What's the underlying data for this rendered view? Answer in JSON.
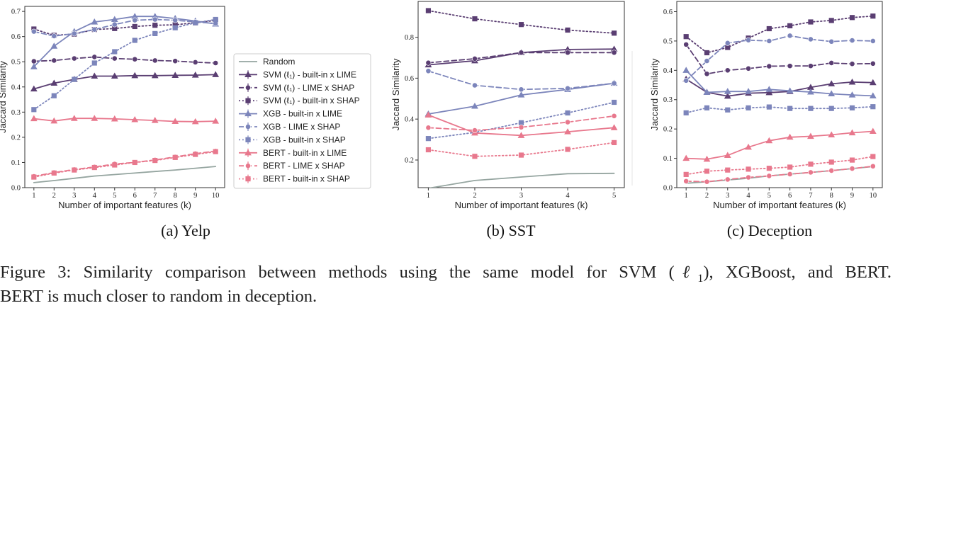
{
  "colors": {
    "svm": "#5a3e72",
    "xgb": "#7c85bb",
    "bert": "#e8788d",
    "random": "#95a5a0"
  },
  "legend": {
    "placement": "between panel a and panel b",
    "entries": [
      {
        "label": "Random",
        "color": "#95a5a0",
        "dash": "solid",
        "marker": "none"
      },
      {
        "label": "SVM (ℓ₁) - built-in x LIME",
        "color": "#5a3e72",
        "dash": "solid",
        "marker": "tri"
      },
      {
        "label": "SVM (ℓ₁) - LIME x SHAP",
        "color": "#5a3e72",
        "dash": "dashed",
        "marker": "circle"
      },
      {
        "label": "SVM (ℓ₁) - built-in x SHAP",
        "color": "#5a3e72",
        "dash": "dotted",
        "marker": "square"
      },
      {
        "label": "XGB - built-in x LIME",
        "color": "#7c85bb",
        "dash": "solid",
        "marker": "tri"
      },
      {
        "label": "XGB - LIME x SHAP",
        "color": "#7c85bb",
        "dash": "dashed",
        "marker": "circle"
      },
      {
        "label": "XGB - built-in x SHAP",
        "color": "#7c85bb",
        "dash": "dotted",
        "marker": "square"
      },
      {
        "label": "BERT - built-in x LIME",
        "color": "#e8788d",
        "dash": "solid",
        "marker": "tri"
      },
      {
        "label": "BERT - LIME x SHAP",
        "color": "#e8788d",
        "dash": "dashed",
        "marker": "circle"
      },
      {
        "label": "BERT - built-in x SHAP",
        "color": "#e8788d",
        "dash": "dotted",
        "marker": "square"
      }
    ]
  },
  "chart_data": [
    {
      "type": "line",
      "subcaption": "(a) Yelp",
      "xlabel": "Number of important features (k)",
      "ylabel": "Jaccard Similarity",
      "x": [
        1,
        2,
        3,
        4,
        5,
        6,
        7,
        8,
        9,
        10
      ],
      "xticks": [
        "1",
        "2",
        "3",
        "4",
        "5",
        "6",
        "7",
        "8",
        "9",
        "10"
      ],
      "xlim": [
        0.55,
        10.45
      ],
      "ylim": [
        0.0,
        0.72
      ],
      "yticks": [
        "0.0",
        "0.1",
        "0.2",
        "0.3",
        "0.4",
        "0.5",
        "0.6",
        "0.7"
      ],
      "grid": false,
      "series": [
        {
          "name": "Random",
          "values": [
            0.02,
            0.028,
            0.037,
            0.046,
            0.052,
            0.058,
            0.064,
            0.07,
            0.077,
            0.084
          ]
        },
        {
          "name": "SVM (ℓ₁) - built-in x LIME",
          "values": [
            0.392,
            0.415,
            0.43,
            0.443,
            0.443,
            0.445,
            0.445,
            0.446,
            0.447,
            0.449
          ]
        },
        {
          "name": "SVM (ℓ₁) - LIME x SHAP",
          "values": [
            0.502,
            0.505,
            0.513,
            0.519,
            0.513,
            0.51,
            0.505,
            0.503,
            0.498,
            0.495
          ]
        },
        {
          "name": "SVM (ℓ₁) - built-in x SHAP",
          "values": [
            0.63,
            0.605,
            0.61,
            0.628,
            0.632,
            0.64,
            0.645,
            0.647,
            0.655,
            0.664
          ]
        },
        {
          "name": "XGB - built-in x LIME",
          "values": [
            0.48,
            0.562,
            0.62,
            0.658,
            0.668,
            0.68,
            0.68,
            0.672,
            0.662,
            0.65
          ]
        },
        {
          "name": "XGB - LIME x SHAP",
          "values": [
            0.62,
            0.602,
            0.612,
            0.628,
            0.648,
            0.665,
            0.668,
            0.665,
            0.658,
            0.652
          ]
        },
        {
          "name": "XGB - built-in x SHAP",
          "values": [
            0.31,
            0.365,
            0.43,
            0.495,
            0.54,
            0.585,
            0.612,
            0.635,
            0.655,
            0.668
          ]
        },
        {
          "name": "BERT - built-in x LIME",
          "values": [
            0.274,
            0.265,
            0.275,
            0.275,
            0.273,
            0.27,
            0.267,
            0.263,
            0.262,
            0.264
          ]
        },
        {
          "name": "BERT - LIME x SHAP",
          "values": [
            0.045,
            0.06,
            0.072,
            0.082,
            0.094,
            0.1,
            0.11,
            0.122,
            0.135,
            0.145
          ]
        },
        {
          "name": "BERT - built-in x SHAP",
          "values": [
            0.042,
            0.058,
            0.07,
            0.08,
            0.09,
            0.1,
            0.108,
            0.12,
            0.132,
            0.143
          ]
        }
      ]
    },
    {
      "type": "line",
      "subcaption": "(b) SST",
      "xlabel": "Number of important features (k)",
      "ylabel": "Jaccard Similarity",
      "x": [
        1,
        2,
        3,
        4,
        5
      ],
      "xticks": [
        "1",
        "2",
        "3",
        "4",
        "5"
      ],
      "xlim": [
        0.78,
        5.22
      ],
      "ylim": [
        0.065,
        0.975
      ],
      "yticks": [
        "0.2",
        "0.4",
        "0.6",
        "0.8"
      ],
      "grid": false,
      "series": [
        {
          "name": "Random",
          "values": [
            0.062,
            0.1,
            0.117,
            0.133,
            0.135
          ]
        },
        {
          "name": "SVM (ℓ₁) - built-in x LIME",
          "values": [
            0.665,
            0.685,
            0.725,
            0.74,
            0.742
          ]
        },
        {
          "name": "SVM (ℓ₁) - LIME x SHAP",
          "values": [
            0.675,
            0.695,
            0.725,
            0.725,
            0.725
          ]
        },
        {
          "name": "SVM (ℓ₁) - built-in x SHAP",
          "values": [
            0.93,
            0.89,
            0.862,
            0.835,
            0.82
          ]
        },
        {
          "name": "XGB - built-in x LIME",
          "values": [
            0.425,
            0.463,
            0.518,
            0.545,
            0.575
          ]
        },
        {
          "name": "XGB - LIME x SHAP",
          "values": [
            0.635,
            0.565,
            0.545,
            0.55,
            0.575
          ]
        },
        {
          "name": "XGB - built-in x SHAP",
          "values": [
            0.305,
            0.335,
            0.382,
            0.43,
            0.482
          ]
        },
        {
          "name": "BERT - built-in x LIME",
          "values": [
            0.42,
            0.332,
            0.32,
            0.338,
            0.358
          ]
        },
        {
          "name": "BERT - LIME x SHAP",
          "values": [
            0.358,
            0.345,
            0.36,
            0.385,
            0.415
          ]
        },
        {
          "name": "BERT - built-in x SHAP",
          "values": [
            0.25,
            0.218,
            0.224,
            0.252,
            0.285
          ]
        }
      ]
    },
    {
      "type": "line",
      "subcaption": "(c) Deception",
      "xlabel": "Number of important features (k)",
      "ylabel": "Jaccard Similarity",
      "x": [
        1,
        2,
        3,
        4,
        5,
        6,
        7,
        8,
        9,
        10
      ],
      "xticks": [
        "1",
        "2",
        "3",
        "4",
        "5",
        "6",
        "7",
        "8",
        "9",
        "10"
      ],
      "xlim": [
        0.55,
        10.45
      ],
      "ylim": [
        0.0,
        0.635
      ],
      "yticks": [
        "0.0",
        "0.1",
        "0.2",
        "0.3",
        "0.4",
        "0.5",
        "0.6"
      ],
      "grid": false,
      "series": [
        {
          "name": "Random",
          "values": [
            0.015,
            0.02,
            0.026,
            0.032,
            0.04,
            0.046,
            0.052,
            0.058,
            0.065,
            0.072
          ]
        },
        {
          "name": "SVM (ℓ₁) - built-in x LIME",
          "values": [
            0.37,
            0.325,
            0.312,
            0.322,
            0.324,
            0.328,
            0.342,
            0.354,
            0.36,
            0.358
          ]
        },
        {
          "name": "SVM (ℓ₁) - LIME x SHAP",
          "values": [
            0.488,
            0.388,
            0.4,
            0.406,
            0.414,
            0.415,
            0.415,
            0.425,
            0.422,
            0.423
          ]
        },
        {
          "name": "SVM (ℓ₁) - built-in x SHAP",
          "values": [
            0.515,
            0.46,
            0.478,
            0.51,
            0.542,
            0.552,
            0.565,
            0.57,
            0.58,
            0.585
          ]
        },
        {
          "name": "XGB - built-in x LIME",
          "values": [
            0.4,
            0.325,
            0.328,
            0.328,
            0.335,
            0.33,
            0.326,
            0.32,
            0.316,
            0.313
          ]
        },
        {
          "name": "XGB - LIME x SHAP",
          "values": [
            0.365,
            0.432,
            0.493,
            0.503,
            0.5,
            0.518,
            0.506,
            0.498,
            0.502,
            0.5
          ]
        },
        {
          "name": "XGB - built-in x SHAP",
          "values": [
            0.255,
            0.272,
            0.265,
            0.272,
            0.275,
            0.27,
            0.27,
            0.27,
            0.272,
            0.276
          ]
        },
        {
          "name": "BERT - built-in x LIME",
          "values": [
            0.1,
            0.097,
            0.11,
            0.138,
            0.16,
            0.172,
            0.175,
            0.18,
            0.187,
            0.192
          ]
        },
        {
          "name": "BERT - LIME x SHAP",
          "values": [
            0.022,
            0.02,
            0.028,
            0.035,
            0.04,
            0.046,
            0.052,
            0.058,
            0.065,
            0.073
          ]
        },
        {
          "name": "BERT - built-in x SHAP",
          "values": [
            0.045,
            0.056,
            0.06,
            0.063,
            0.066,
            0.07,
            0.08,
            0.087,
            0.094,
            0.106
          ]
        }
      ]
    }
  ],
  "caption": {
    "line1_a": "Figure 3:  Similarity comparison between methods using the same model for SVM (",
    "ell": "ℓ",
    "sub1": "1",
    "line1_b": "), XGBoost, and BERT.",
    "line2": "BERT is much closer to random in deception."
  }
}
